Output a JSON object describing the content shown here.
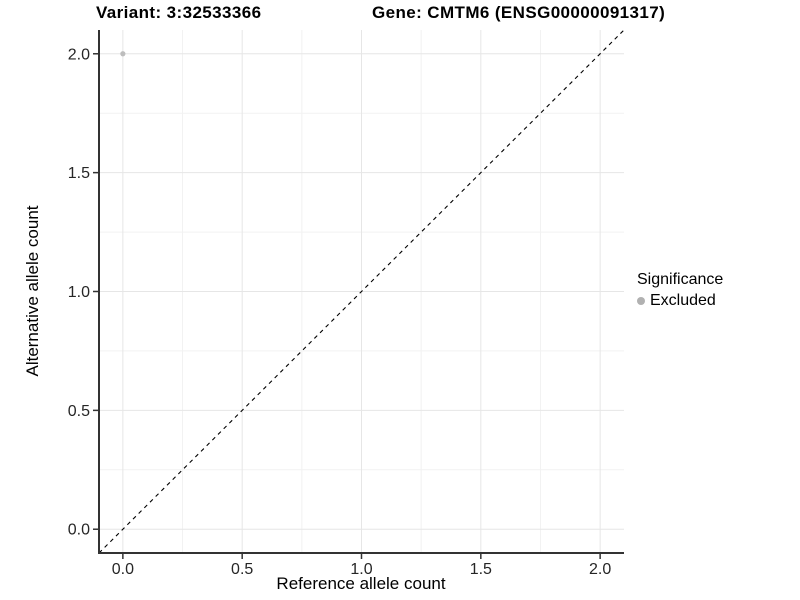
{
  "chart_data": {
    "type": "scatter",
    "titles": {
      "variant": "Variant: 3:32533366",
      "gene": "Gene: CMTM6 (ENSG00000091317)"
    },
    "xlabel": "Reference allele count",
    "ylabel": "Alternative allele count",
    "xlim": [
      -0.1,
      2.1
    ],
    "ylim": [
      -0.1,
      2.1
    ],
    "xticks": {
      "values": [
        0,
        0.5,
        1,
        1.5,
        2
      ],
      "labels": [
        "0.0",
        "0.5",
        "1.0",
        "1.5",
        "2.0"
      ]
    },
    "yticks": {
      "values": [
        0,
        0.5,
        1,
        1.5,
        2
      ],
      "labels": [
        "0.0",
        "0.5",
        "1.0",
        "1.5",
        "2.0"
      ]
    },
    "minor_grid_values": [
      0.25,
      0.75,
      1.25,
      1.75
    ],
    "grid": "major+minor",
    "points": [
      {
        "x": 0.0,
        "y": 2.0,
        "series": "Excluded"
      }
    ],
    "identity_line": {
      "slope": 1,
      "intercept": 0,
      "style": "dashed",
      "color": "#000000"
    },
    "legend": {
      "title": "Significance",
      "position": "right",
      "entries": [
        {
          "label": "Excluded",
          "color": "#b1b1b1",
          "marker": "circle"
        }
      ]
    },
    "colors": {
      "point": "#bdbdbd",
      "grid_major": "#e6e6e6",
      "grid_minor": "#f2f2f2",
      "axis_line": "#333333",
      "tick_label": "#262626"
    }
  }
}
